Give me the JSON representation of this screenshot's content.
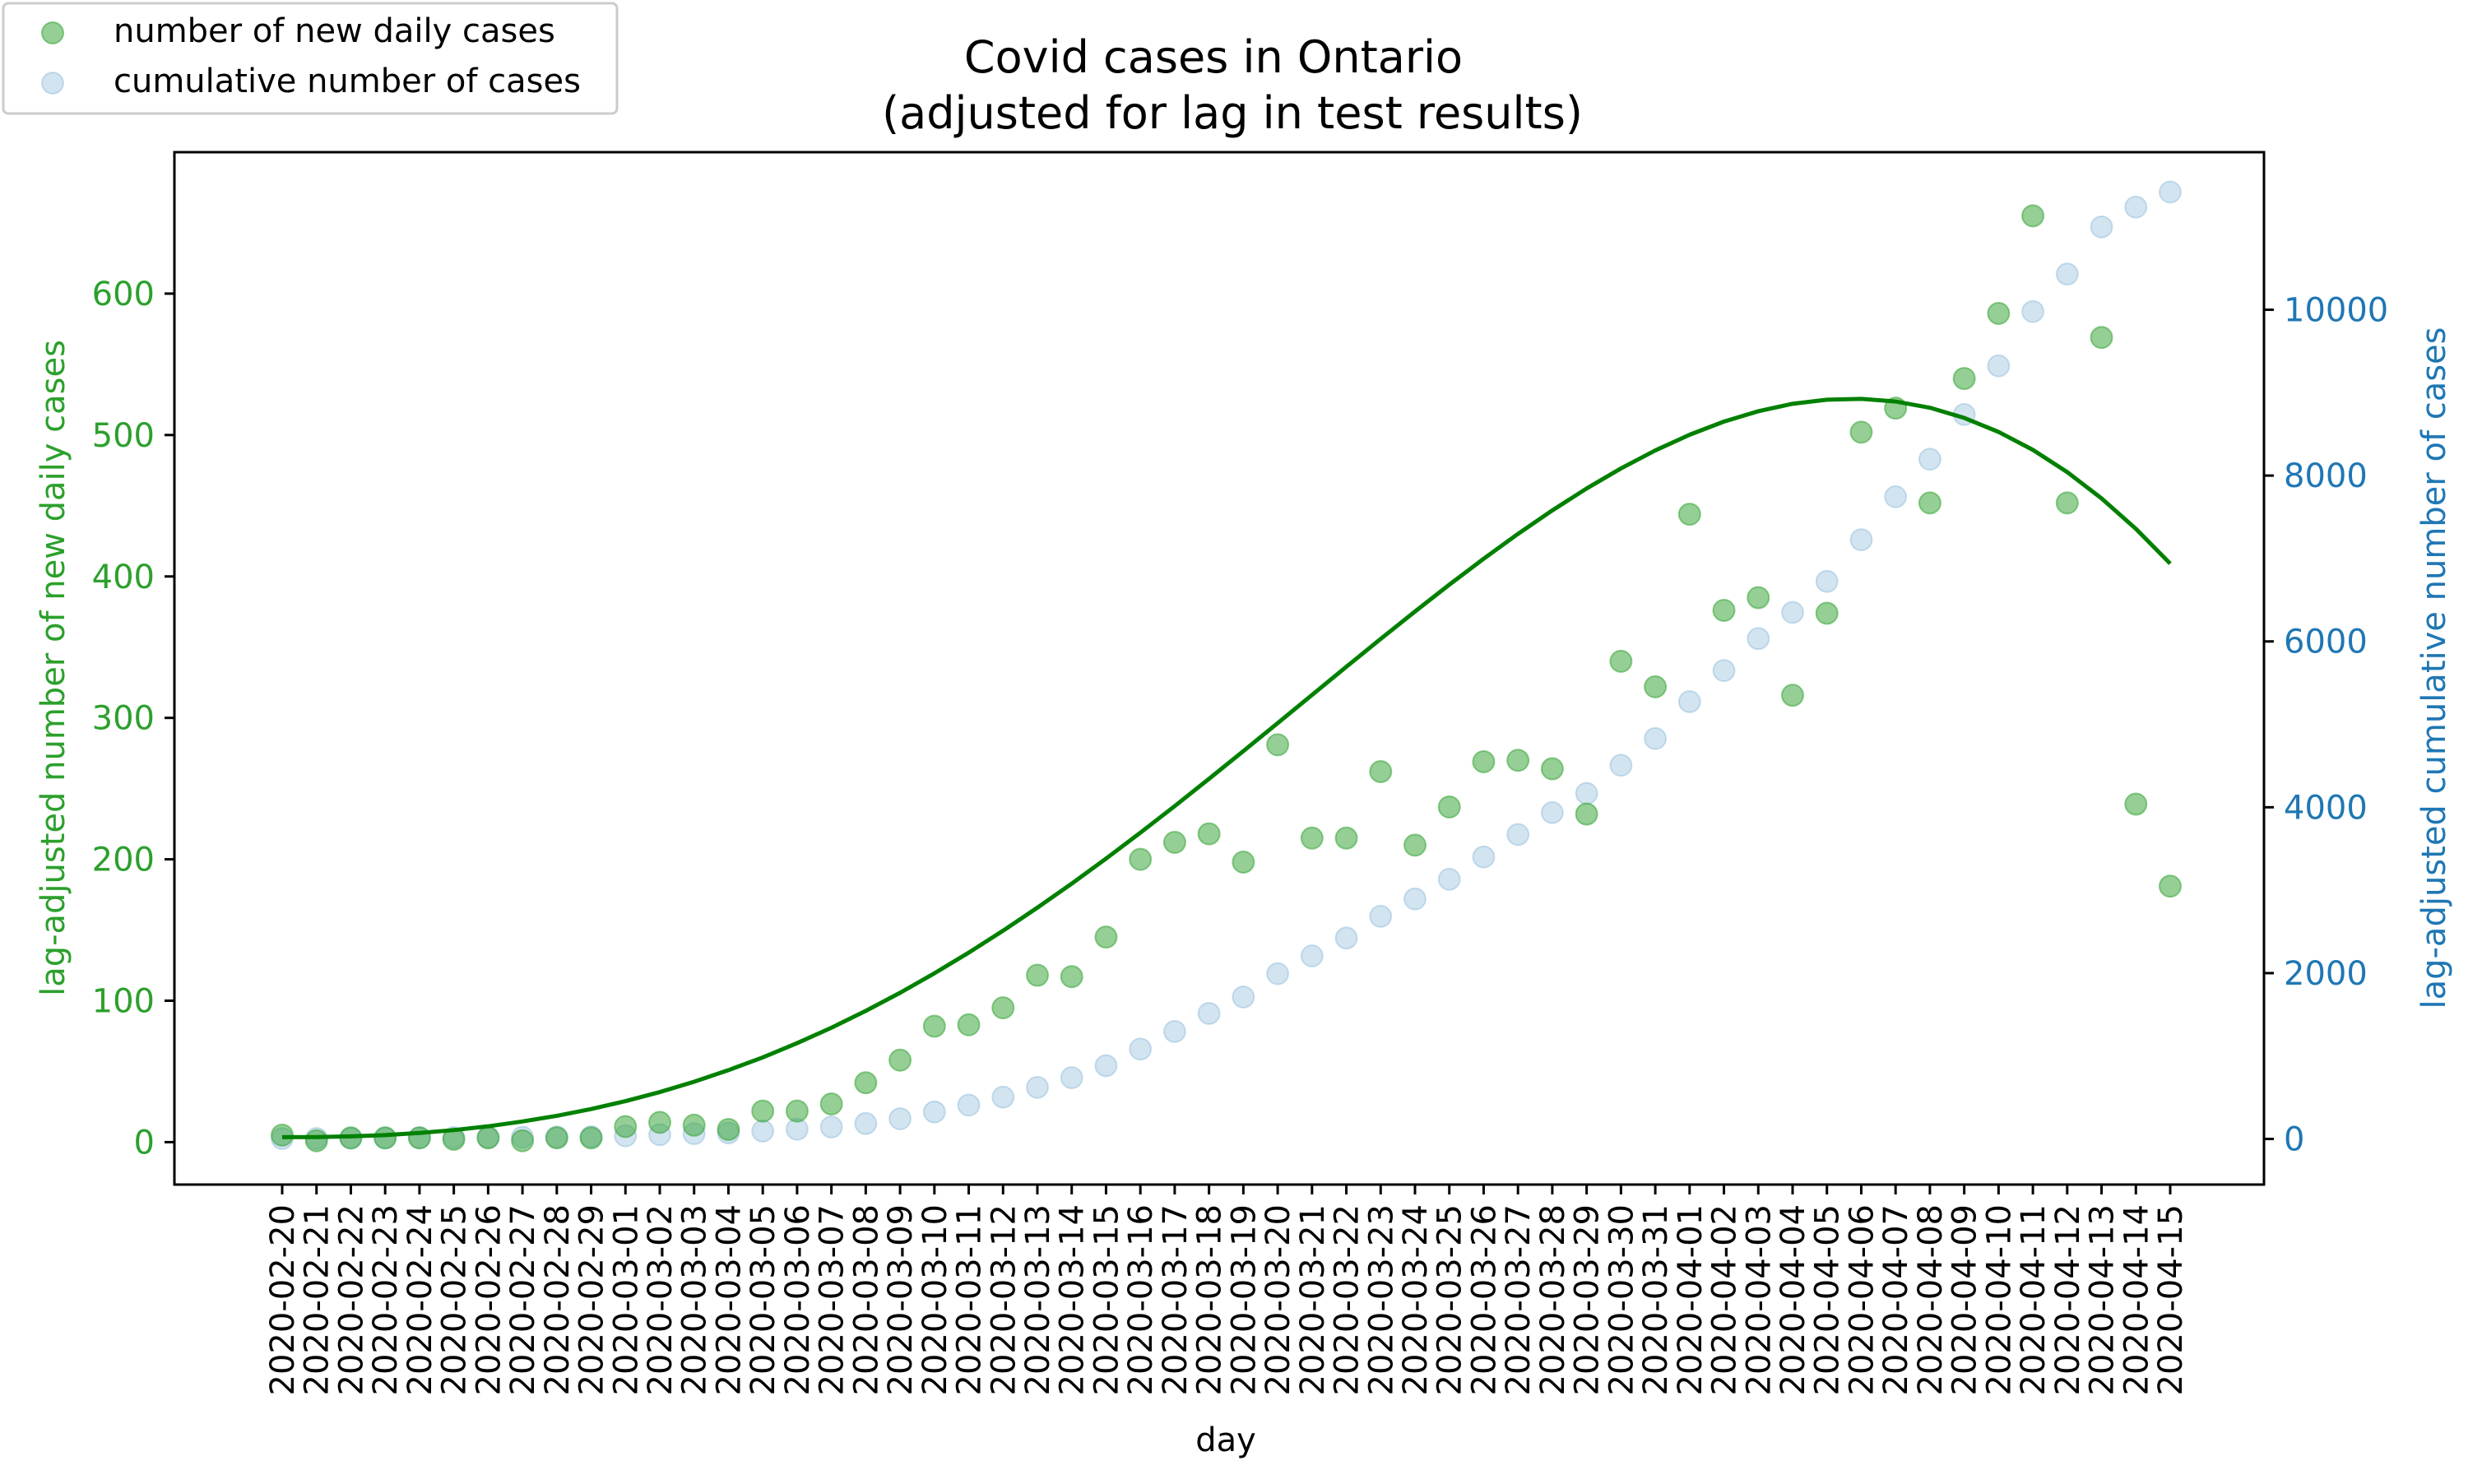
{
  "chart_data": {
    "type": "scatter",
    "title": "Covid cases in Ontario",
    "subtitle": "(adjusted for lag in test results)",
    "xlabel": "day",
    "ylabel_left": "lag-adjusted number of new daily cases",
    "ylabel_right": "lag-adjusted cumulative number of cases",
    "ylim_left": [
      -30,
      700
    ],
    "ylim_right": [
      -550,
      11900
    ],
    "yticks_left": [
      0,
      100,
      200,
      300,
      400,
      500,
      600
    ],
    "yticks_right": [
      0,
      2000,
      4000,
      6000,
      8000,
      10000
    ],
    "legend_placement": "top-left",
    "grid": false,
    "x": [
      "2020-02-20",
      "2020-02-21",
      "2020-02-22",
      "2020-02-23",
      "2020-02-24",
      "2020-02-25",
      "2020-02-26",
      "2020-02-27",
      "2020-02-28",
      "2020-02-29",
      "2020-03-01",
      "2020-03-02",
      "2020-03-03",
      "2020-03-04",
      "2020-03-05",
      "2020-03-06",
      "2020-03-07",
      "2020-03-08",
      "2020-03-09",
      "2020-03-10",
      "2020-03-11",
      "2020-03-12",
      "2020-03-13",
      "2020-03-14",
      "2020-03-15",
      "2020-03-16",
      "2020-03-17",
      "2020-03-18",
      "2020-03-19",
      "2020-03-20",
      "2020-03-21",
      "2020-03-22",
      "2020-03-23",
      "2020-03-24",
      "2020-03-25",
      "2020-03-26",
      "2020-03-27",
      "2020-03-28",
      "2020-03-29",
      "2020-03-30",
      "2020-03-31",
      "2020-04-01",
      "2020-04-02",
      "2020-04-03",
      "2020-04-04",
      "2020-04-05",
      "2020-04-06",
      "2020-04-07",
      "2020-04-08",
      "2020-04-09",
      "2020-04-10",
      "2020-04-11",
      "2020-04-12",
      "2020-04-13",
      "2020-04-14",
      "2020-04-15"
    ],
    "series": [
      {
        "name": "number of new daily cases",
        "axis": "left",
        "kind": "scatter",
        "color": "#2ca02c",
        "values": [
          5,
          1,
          3,
          3,
          3,
          2,
          3,
          1,
          3,
          3,
          11,
          14,
          12,
          9,
          22,
          22,
          27,
          42,
          58,
          82,
          83,
          95,
          118,
          117,
          145,
          200,
          212,
          218,
          198,
          281,
          215,
          215,
          262,
          210,
          237,
          269,
          270,
          264,
          232,
          340,
          322,
          444,
          376,
          385,
          316,
          374,
          502,
          519,
          452,
          540,
          586,
          655,
          452,
          569,
          239,
          181
        ]
      },
      {
        "name": "cumulative number of cases",
        "axis": "right",
        "kind": "scatter",
        "color": "#1f77b4",
        "values": [
          5,
          6,
          9,
          12,
          15,
          17,
          20,
          21,
          24,
          27,
          38,
          52,
          64,
          73,
          95,
          117,
          144,
          186,
          244,
          326,
          409,
          504,
          622,
          739,
          884,
          1084,
          1296,
          1514,
          1712,
          1993,
          2208,
          2423,
          2685,
          2895,
          3132,
          3401,
          3671,
          3935,
          4167,
          4507,
          4829,
          5273,
          5649,
          6034,
          6350,
          6724,
          7226,
          7745,
          8197,
          8737,
          9323,
          9978,
          10430,
          10999,
          11238,
          11419
        ]
      },
      {
        "name": "",
        "axis": "left",
        "kind": "trend-line",
        "color": "#008000",
        "values": [
          3.5,
          3.6,
          4.1,
          5.0,
          6.5,
          8.5,
          11.2,
          14.6,
          18.6,
          23.4,
          29.0,
          35.4,
          42.7,
          50.9,
          59.9,
          70.0,
          80.9,
          92.8,
          105.6,
          119.4,
          134.0,
          149.5,
          165.8,
          182.8,
          200.5,
          218.8,
          237.6,
          256.9,
          276.5,
          296.3,
          316.2,
          336.1,
          355.8,
          375.2,
          394.2,
          412.5,
          430.1,
          446.7,
          462.2,
          476.4,
          489.1,
          500.2,
          509.5,
          516.8,
          522.1,
          525.0,
          525.6,
          523.7,
          519.3,
          512.1,
          502.2,
          489.5,
          473.8,
          455.2,
          433.7,
          409.1
        ]
      }
    ]
  }
}
